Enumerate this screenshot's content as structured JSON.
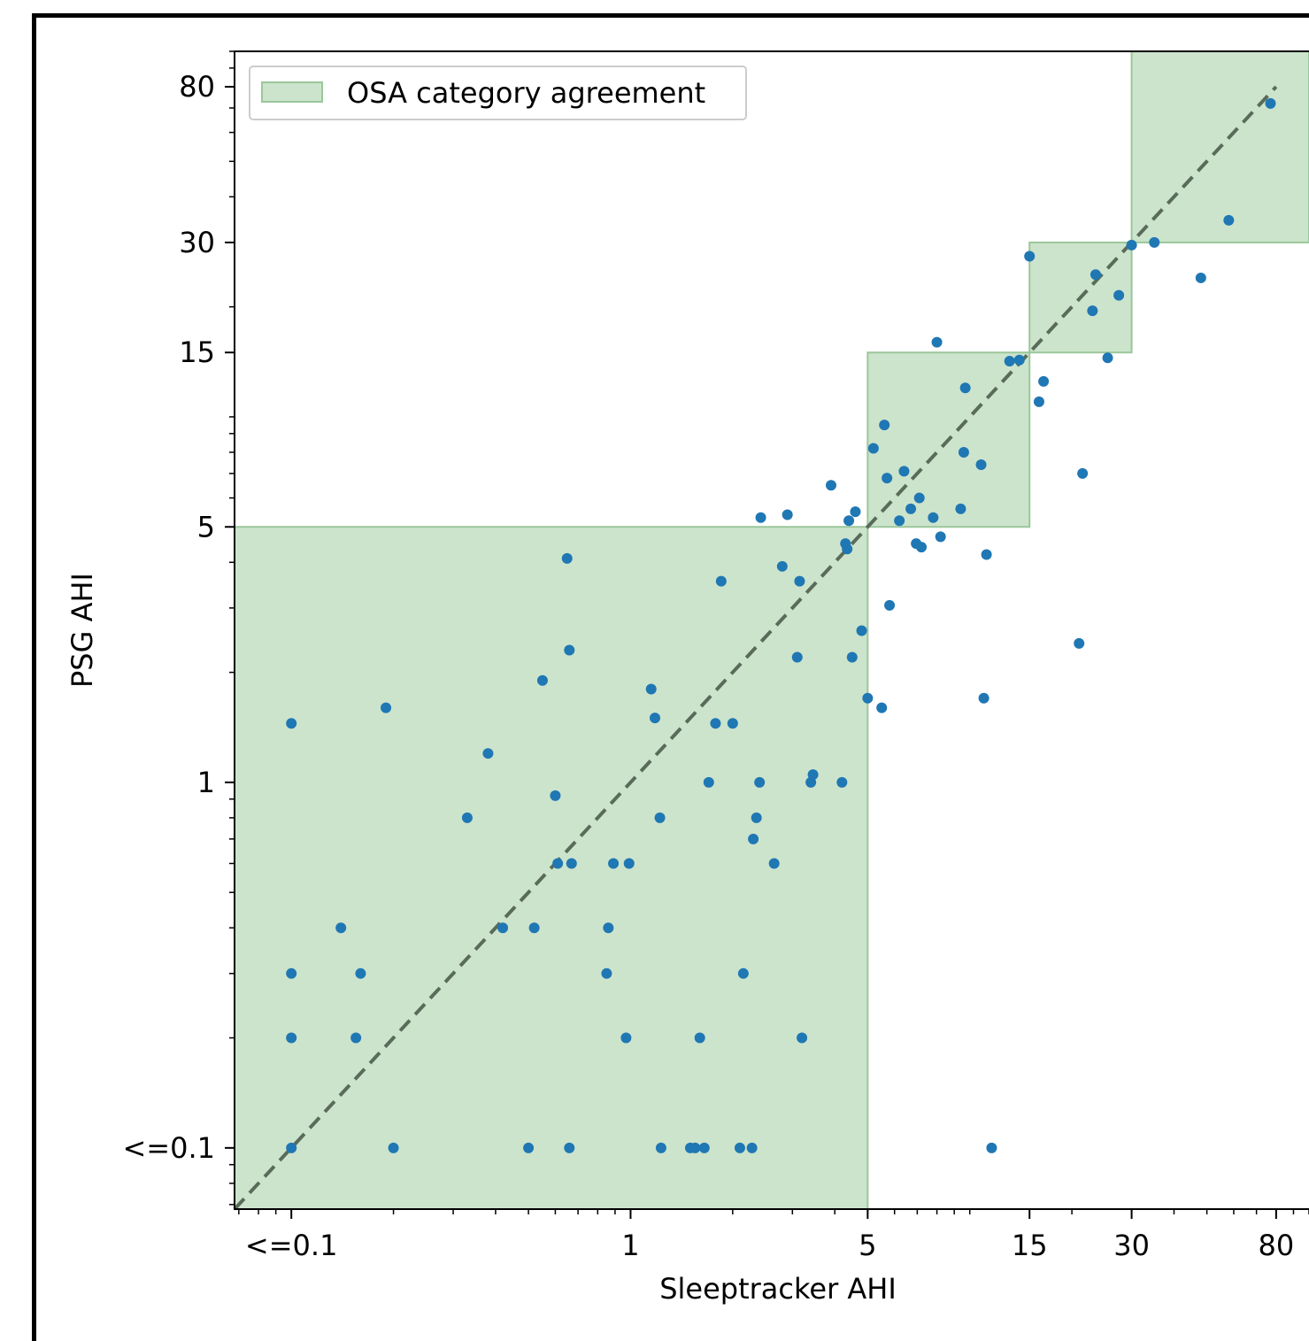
{
  "chart_data": {
    "type": "scatter",
    "xlabel": "Sleeptracker AHI",
    "ylabel": "PSG AHI",
    "x_scale": "log",
    "y_scale": "log",
    "xlim": [
      0.068,
      100
    ],
    "ylim": [
      0.068,
      100
    ],
    "xticks": [
      {
        "value": 0.1,
        "label": "<=0.1"
      },
      {
        "value": 1,
        "label": "1"
      },
      {
        "value": 5,
        "label": "5"
      },
      {
        "value": 15,
        "label": "15"
      },
      {
        "value": 30,
        "label": "30"
      },
      {
        "value": 80,
        "label": "80"
      }
    ],
    "yticks": [
      {
        "value": 0.1,
        "label": "<=0.1"
      },
      {
        "value": 1,
        "label": "1"
      },
      {
        "value": 5,
        "label": "5"
      },
      {
        "value": 15,
        "label": "15"
      },
      {
        "value": 30,
        "label": "30"
      },
      {
        "value": 80,
        "label": "80"
      }
    ],
    "legend": {
      "label": "OSA category agreement",
      "placement": "top-left",
      "color": "#cce4cc"
    },
    "agreement_regions": [
      {
        "x": [
          0.068,
          5
        ],
        "y": [
          0.068,
          5
        ]
      },
      {
        "x": [
          5,
          15
        ],
        "y": [
          5,
          15
        ]
      },
      {
        "x": [
          15,
          30
        ],
        "y": [
          15,
          30
        ]
      },
      {
        "x": [
          30,
          100
        ],
        "y": [
          30,
          100
        ]
      }
    ],
    "identity_line": {
      "from": 0.068,
      "to": 80,
      "style": "dashed",
      "color": "#5a6b5a"
    },
    "point_color": "#1f77b4",
    "points": [
      [
        0.1,
        1.45
      ],
      [
        0.1,
        0.3
      ],
      [
        0.1,
        0.2
      ],
      [
        0.1,
        0.1
      ],
      [
        0.14,
        0.4
      ],
      [
        0.19,
        1.6
      ],
      [
        0.16,
        0.3
      ],
      [
        0.155,
        0.2
      ],
      [
        0.2,
        0.1
      ],
      [
        0.33,
        0.8
      ],
      [
        0.38,
        1.2
      ],
      [
        0.42,
        0.4
      ],
      [
        0.5,
        0.1
      ],
      [
        0.52,
        0.4
      ],
      [
        0.55,
        1.9
      ],
      [
        0.6,
        0.92
      ],
      [
        0.61,
        0.6
      ],
      [
        0.65,
        4.1
      ],
      [
        0.66,
        2.3
      ],
      [
        0.67,
        0.6
      ],
      [
        0.66,
        0.1
      ],
      [
        0.85,
        0.3
      ],
      [
        0.86,
        0.4
      ],
      [
        0.89,
        0.6
      ],
      [
        0.97,
        0.2
      ],
      [
        0.99,
        0.6
      ],
      [
        1.15,
        1.8
      ],
      [
        1.18,
        1.5
      ],
      [
        1.22,
        0.8
      ],
      [
        1.23,
        0.1
      ],
      [
        1.5,
        0.1
      ],
      [
        1.55,
        0.1
      ],
      [
        1.6,
        0.2
      ],
      [
        1.65,
        0.1
      ],
      [
        1.7,
        1.0
      ],
      [
        1.78,
        1.45
      ],
      [
        1.85,
        3.55
      ],
      [
        2.0,
        1.45
      ],
      [
        2.1,
        0.1
      ],
      [
        2.15,
        0.3
      ],
      [
        2.28,
        0.1
      ],
      [
        2.3,
        0.7
      ],
      [
        2.35,
        0.8
      ],
      [
        2.4,
        1.0
      ],
      [
        2.42,
        5.3
      ],
      [
        2.65,
        0.6
      ],
      [
        2.8,
        3.9
      ],
      [
        2.9,
        5.4
      ],
      [
        3.1,
        2.2
      ],
      [
        3.15,
        3.55
      ],
      [
        3.2,
        0.2
      ],
      [
        3.4,
        1.0
      ],
      [
        3.45,
        1.05
      ],
      [
        3.9,
        6.5
      ],
      [
        4.2,
        1.0
      ],
      [
        4.3,
        4.5
      ],
      [
        4.35,
        4.35
      ],
      [
        4.4,
        5.2
      ],
      [
        4.5,
        2.2
      ],
      [
        4.6,
        5.5
      ],
      [
        4.8,
        2.6
      ],
      [
        5.0,
        1.7
      ],
      [
        5.2,
        8.2
      ],
      [
        5.5,
        1.6
      ],
      [
        5.6,
        9.5
      ],
      [
        5.7,
        6.8
      ],
      [
        5.8,
        3.05
      ],
      [
        6.2,
        5.2
      ],
      [
        6.4,
        7.1
      ],
      [
        6.7,
        5.6
      ],
      [
        6.95,
        4.5
      ],
      [
        7.1,
        6.0
      ],
      [
        7.2,
        4.4
      ],
      [
        7.8,
        5.3
      ],
      [
        8.0,
        16.0
      ],
      [
        8.2,
        4.7
      ],
      [
        9.4,
        5.6
      ],
      [
        9.6,
        8.0
      ],
      [
        9.7,
        12.0
      ],
      [
        10.8,
        7.4
      ],
      [
        11.0,
        1.7
      ],
      [
        11.2,
        4.2
      ],
      [
        11.6,
        0.1
      ],
      [
        13.1,
        14.2
      ],
      [
        14.0,
        14.3
      ],
      [
        15.0,
        27.5
      ],
      [
        16.0,
        11.0
      ],
      [
        16.5,
        12.5
      ],
      [
        21.0,
        2.4
      ],
      [
        21.5,
        7.0
      ],
      [
        23.0,
        19.5
      ],
      [
        23.5,
        24.5
      ],
      [
        25.5,
        14.5
      ],
      [
        27.5,
        21.5
      ],
      [
        30.0,
        29.5
      ],
      [
        35.0,
        30.0
      ],
      [
        48.0,
        24.0
      ],
      [
        58.0,
        34.5
      ],
      [
        77.0,
        72.0
      ]
    ]
  }
}
